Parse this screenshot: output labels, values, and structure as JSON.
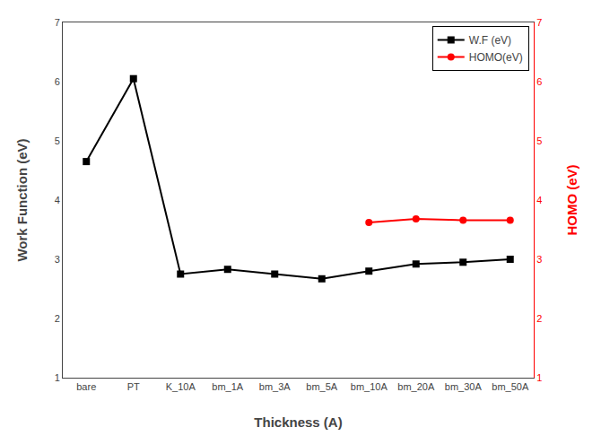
{
  "chart_data": {
    "type": "line",
    "xlabel": "Thickness (A)",
    "ylabel": "Work Function (eV)",
    "y2label": "HOMO (eV)",
    "categories": [
      "bare",
      "PT",
      "K_10A",
      "bm_1A",
      "bm_3A",
      "bm_5A",
      "bm_10A",
      "bm_20A",
      "bm_30A",
      "bm_50A"
    ],
    "series": [
      {
        "name": "W.F (eV)",
        "color": "#000000",
        "marker": "square",
        "values": [
          4.65,
          6.05,
          2.75,
          2.83,
          2.75,
          2.67,
          2.8,
          2.92,
          2.95,
          3.0
        ]
      },
      {
        "name": "HOMO(eV)",
        "color": "#ff0000",
        "marker": "circle",
        "axis": "y2",
        "values": [
          null,
          null,
          null,
          null,
          null,
          null,
          3.62,
          3.68,
          3.66,
          3.66
        ]
      }
    ],
    "ylim": [
      1,
      7
    ],
    "yticks": [
      1,
      2,
      3,
      4,
      5,
      6,
      7
    ],
    "y2lim": [
      1,
      7
    ],
    "y2ticks": [
      1,
      2,
      3,
      4,
      5,
      6,
      7
    ],
    "grid": false,
    "legend": "upper right"
  }
}
